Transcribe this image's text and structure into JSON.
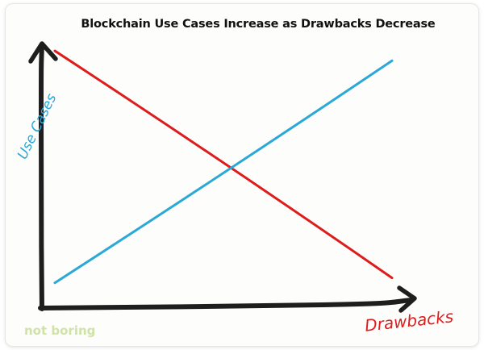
{
  "chart_data": {
    "type": "line",
    "title": "Blockchain Use Cases Increase as Drawbacks Decrease",
    "xlabel": "Drawbacks",
    "ylabel": "Use Cases",
    "x": [
      0,
      10
    ],
    "xlim": [
      0,
      10
    ],
    "ylim": [
      0,
      10
    ],
    "grid": false,
    "legend": "none",
    "series": [
      {
        "color": "#dd1c1c",
        "values": [
          9.9,
          0.7
        ]
      },
      {
        "color": "#2aa8d6",
        "values": [
          0.5,
          9.5
        ]
      }
    ]
  },
  "branding": {
    "text": "not boring",
    "color": "#cfe3a6"
  },
  "colors": {
    "axis": "#1e1e1e",
    "background": "#fdfdfb"
  }
}
